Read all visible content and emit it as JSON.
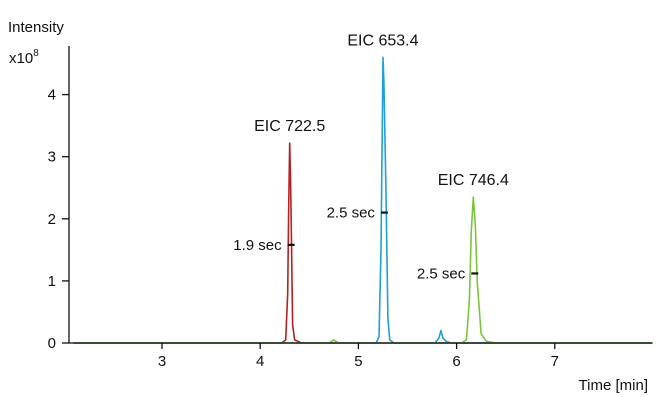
{
  "chart_data": {
    "type": "line",
    "ylabel": "Intensity",
    "ylabel_multiplier": "x10",
    "ylabel_exponent": "8",
    "xlabel": "Time [min]",
    "xlim": [
      2.1,
      8.0
    ],
    "ylim": [
      0,
      4.85
    ],
    "x_ticks": [
      3,
      4,
      5,
      6,
      7
    ],
    "y_ticks": [
      0,
      1,
      2,
      3,
      4
    ],
    "grid": false,
    "series": [
      {
        "name": "EIC 722.5",
        "color": "#b22222",
        "x": [
          2.1,
          4.22,
          4.26,
          4.28,
          4.29,
          4.3,
          4.31,
          4.32,
          4.33,
          4.35,
          4.38,
          4.42,
          8.0
        ],
        "y": [
          0.0,
          0.0,
          0.05,
          0.8,
          2.2,
          3.22,
          2.6,
          1.5,
          0.3,
          0.05,
          0.03,
          0.0,
          0.0
        ]
      },
      {
        "name": "EIC 653.4",
        "color": "#1fa0dc",
        "x": [
          2.1,
          5.18,
          5.21,
          5.23,
          5.25,
          5.26,
          5.28,
          5.3,
          5.32,
          5.36,
          5.78,
          5.82,
          5.84,
          5.86,
          5.9,
          5.95,
          8.0
        ],
        "y": [
          0.0,
          0.0,
          0.1,
          1.5,
          4.6,
          4.2,
          2.5,
          0.4,
          0.05,
          0.0,
          0.0,
          0.08,
          0.2,
          0.08,
          0.02,
          0.0,
          0.0
        ]
      },
      {
        "name": "EIC 746.4",
        "color": "#7cc440",
        "x": [
          2.1,
          4.7,
          4.75,
          4.8,
          6.05,
          6.1,
          6.13,
          6.15,
          6.17,
          6.19,
          6.21,
          6.25,
          6.3,
          6.4,
          8.0
        ],
        "y": [
          0.0,
          0.0,
          0.05,
          0.0,
          0.0,
          0.05,
          0.7,
          1.8,
          2.35,
          1.9,
          1.0,
          0.15,
          0.03,
          0.0,
          0.0
        ]
      }
    ],
    "annotations": [
      {
        "text": "EIC 722.5",
        "x": 4.3,
        "y": 3.22,
        "type": "peak"
      },
      {
        "text": "EIC 653.4",
        "x": 5.25,
        "y": 4.6,
        "type": "peak"
      },
      {
        "text": "EIC 746.4",
        "x": 6.17,
        "y": 2.35,
        "type": "peak"
      },
      {
        "text": "1.9 sec",
        "x": 4.3,
        "y": 1.58,
        "type": "width"
      },
      {
        "text": "2.5 sec",
        "x": 5.25,
        "y": 2.1,
        "type": "width"
      },
      {
        "text": "2.5 sec",
        "x": 6.17,
        "y": 1.12,
        "type": "width"
      }
    ]
  }
}
